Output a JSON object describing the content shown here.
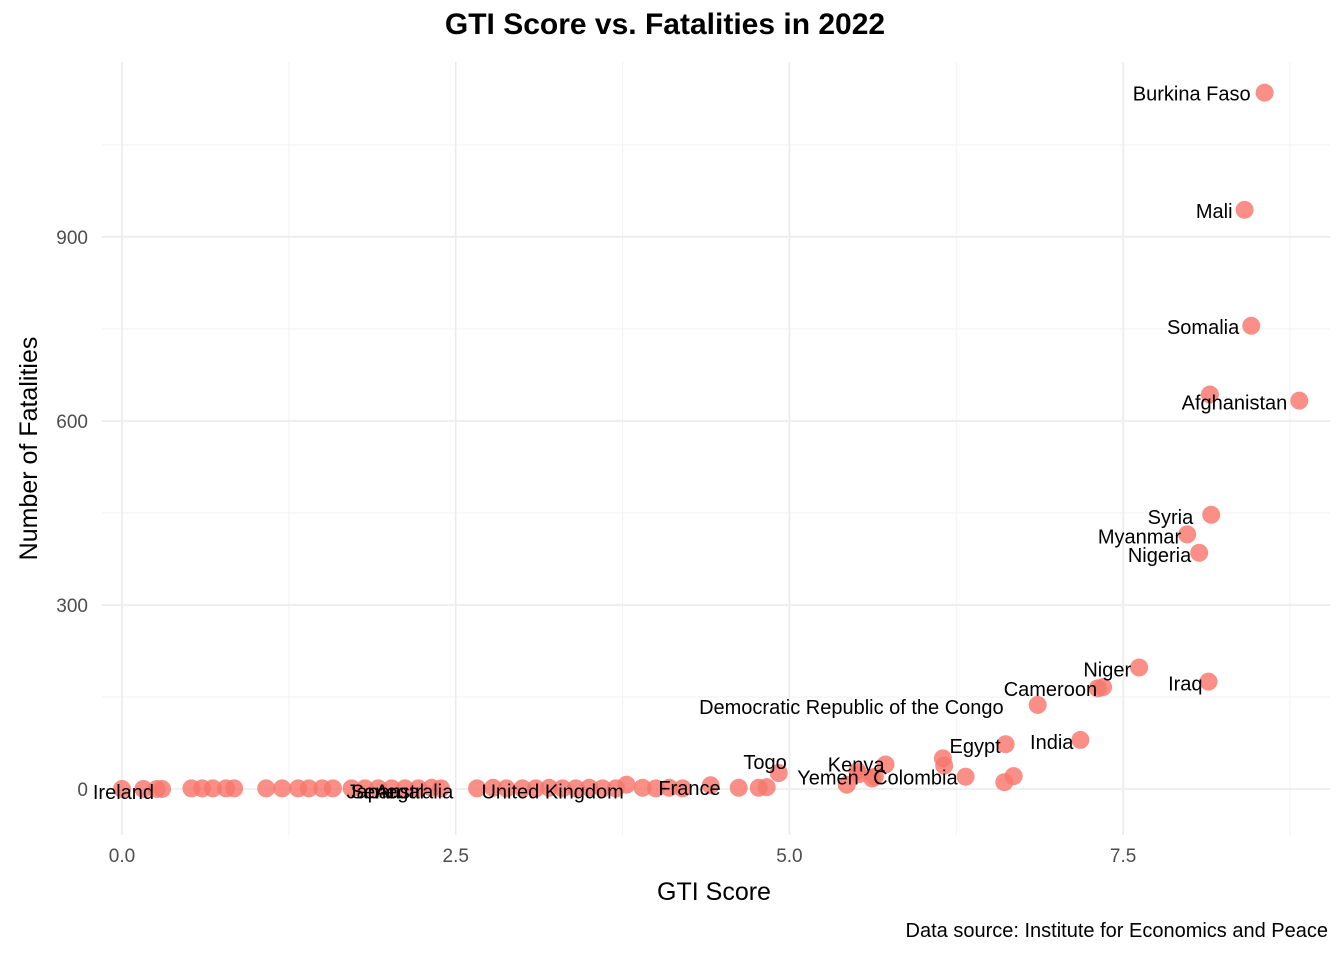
{
  "chart_data": {
    "type": "scatter",
    "title": "GTI Score vs. Fatalities in 2022",
    "xlabel": "GTI Score",
    "ylabel": "Number of Fatalities",
    "caption": "Data source: Institute for Economics and Peace",
    "xlim": [
      -0.15,
      9.05
    ],
    "ylim": [
      -75,
      1185
    ],
    "x_ticks": [
      {
        "value": 0,
        "label": "0.0"
      },
      {
        "value": 2.5,
        "label": "2.5"
      },
      {
        "value": 5,
        "label": "5.0"
      },
      {
        "value": 7.5,
        "label": "7.5"
      }
    ],
    "y_ticks": [
      {
        "value": 0,
        "label": "0"
      },
      {
        "value": 300,
        "label": "300"
      },
      {
        "value": 600,
        "label": "600"
      },
      {
        "value": 900,
        "label": "900"
      }
    ],
    "grid": true,
    "point_color": "#F8766D",
    "points": [
      {
        "x": 8.56,
        "y": 1135,
        "label": "Burkina Faso"
      },
      {
        "x": 8.41,
        "y": 944,
        "label": "Mali"
      },
      {
        "x": 8.46,
        "y": 755,
        "label": "Somalia"
      },
      {
        "x": 8.15,
        "y": 643
      },
      {
        "x": 8.82,
        "y": 633,
        "label": "Afghanistan"
      },
      {
        "x": 8.16,
        "y": 447,
        "label": "Syria"
      },
      {
        "x": 7.98,
        "y": 415,
        "label": "Myanmar"
      },
      {
        "x": 8.07,
        "y": 385,
        "label": "Nigeria"
      },
      {
        "x": 7.62,
        "y": 198,
        "label": "Niger"
      },
      {
        "x": 8.14,
        "y": 175,
        "label": "Iraq"
      },
      {
        "x": 7.35,
        "y": 166,
        "label": "Cameroon"
      },
      {
        "x": 7.31,
        "y": 164
      },
      {
        "x": 6.86,
        "y": 137,
        "label": "Democratic Republic of the Congo"
      },
      {
        "x": 7.18,
        "y": 80,
        "label": "India"
      },
      {
        "x": 6.62,
        "y": 73,
        "label": "Egypt"
      },
      {
        "x": 6.15,
        "y": 50
      },
      {
        "x": 6.16,
        "y": 38
      },
      {
        "x": 5.72,
        "y": 40,
        "label": "Kenya"
      },
      {
        "x": 5.51,
        "y": 29
      },
      {
        "x": 5.52,
        "y": 24
      },
      {
        "x": 5.64,
        "y": 20
      },
      {
        "x": 5.62,
        "y": 17
      },
      {
        "x": 6.32,
        "y": 20,
        "label": "Colombia"
      },
      {
        "x": 6.68,
        "y": 21
      },
      {
        "x": 6.61,
        "y": 11
      },
      {
        "x": 5.43,
        "y": 7,
        "label": "Yemen"
      },
      {
        "x": 4.92,
        "y": 26,
        "label": "Togo"
      },
      {
        "x": 4.83,
        "y": 3
      },
      {
        "x": 4.77,
        "y": 2
      },
      {
        "x": 4.62,
        "y": 2
      },
      {
        "x": 4.41,
        "y": 6
      },
      {
        "x": 4.2,
        "y": 1
      },
      {
        "x": 4.1,
        "y": 2
      },
      {
        "x": 4.0,
        "y": 1
      },
      {
        "x": 3.9,
        "y": 2,
        "label": "France"
      },
      {
        "x": 3.78,
        "y": 7
      },
      {
        "x": 3.7,
        "y": 1
      },
      {
        "x": 3.6,
        "y": 1
      },
      {
        "x": 3.5,
        "y": 2
      },
      {
        "x": 3.4,
        "y": 1
      },
      {
        "x": 3.3,
        "y": 1
      },
      {
        "x": 3.2,
        "y": 2
      },
      {
        "x": 3.1,
        "y": 1,
        "label": "United Kingdom"
      },
      {
        "x": 3.0,
        "y": 1
      },
      {
        "x": 2.88,
        "y": 1
      },
      {
        "x": 2.78,
        "y": 2
      },
      {
        "x": 2.66,
        "y": 1
      },
      {
        "x": 2.39,
        "y": 1
      },
      {
        "x": 2.32,
        "y": 2
      },
      {
        "x": 2.22,
        "y": 1
      },
      {
        "x": 2.12,
        "y": 1,
        "label": "Japan"
      },
      {
        "x": 2.02,
        "y": 1
      },
      {
        "x": 1.92,
        "y": 1
      },
      {
        "x": 1.82,
        "y": 1
      },
      {
        "x": 1.72,
        "y": 1
      },
      {
        "x": 1.58,
        "y": 1
      },
      {
        "x": 1.5,
        "y": 1
      },
      {
        "x": 1.4,
        "y": 1
      },
      {
        "x": 1.32,
        "y": 1,
        "label": "Australia"
      },
      {
        "x": 1.2,
        "y": 1
      },
      {
        "x": 1.08,
        "y": 1
      },
      {
        "x": 0.84,
        "y": 1
      },
      {
        "x": 0.78,
        "y": 1
      },
      {
        "x": 0.68,
        "y": 1
      },
      {
        "x": 0.6,
        "y": 1,
        "label": "Senegal"
      },
      {
        "x": 0.52,
        "y": 1
      },
      {
        "x": 0.3,
        "y": 0
      },
      {
        "x": 0.26,
        "y": 0
      },
      {
        "x": 0.16,
        "y": 0
      },
      {
        "x": 0.0,
        "y": 0,
        "label": "Ireland"
      }
    ]
  }
}
